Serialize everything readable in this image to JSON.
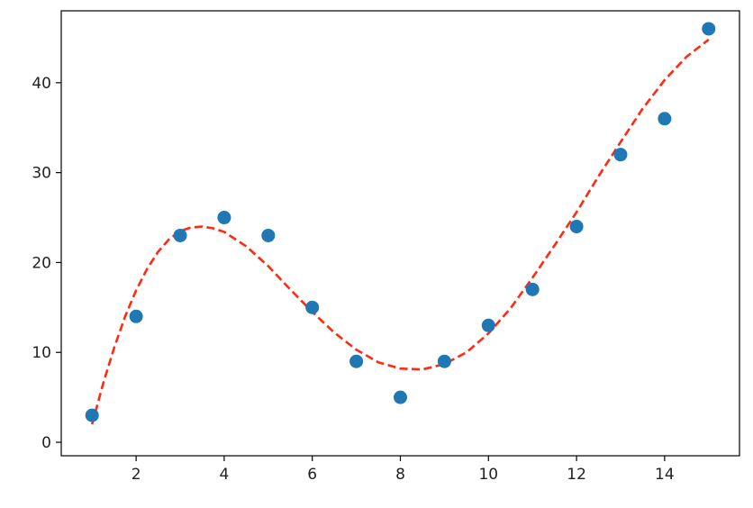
{
  "chart_data": {
    "type": "scatter",
    "title": "",
    "xlabel": "",
    "ylabel": "",
    "xlim": [
      0.3,
      15.7
    ],
    "ylim": [
      -1.5,
      48
    ],
    "x_ticks": [
      2,
      4,
      6,
      8,
      10,
      12,
      14
    ],
    "y_ticks": [
      0,
      10,
      20,
      30,
      40
    ],
    "grid": false,
    "series": [
      {
        "kind": "scatter",
        "color": "#1f77b4",
        "x": [
          1,
          2,
          3,
          4,
          5,
          6,
          7,
          8,
          9,
          10,
          11,
          12,
          13,
          14,
          15
        ],
        "y": [
          3,
          14,
          23,
          25,
          23,
          15,
          9,
          5,
          9,
          13,
          17,
          24,
          32,
          36,
          46
        ]
      },
      {
        "kind": "line",
        "style": "dashed",
        "color": "#ff2a12",
        "x": [
          1,
          1.25,
          1.5,
          1.75,
          2,
          2.25,
          2.5,
          2.75,
          3,
          3.25,
          3.5,
          3.75,
          4,
          4.5,
          5,
          5.5,
          6,
          6.5,
          7,
          7.5,
          8,
          8.5,
          9,
          9.5,
          10,
          10.5,
          11,
          11.5,
          12,
          12.5,
          13,
          13.5,
          14,
          14.5,
          15
        ],
        "y": [
          2,
          6.5,
          10.5,
          14,
          16.9,
          19.3,
          21.2,
          22.6,
          23.5,
          23.9,
          24,
          23.8,
          23.4,
          21.8,
          19.6,
          17,
          14.5,
          12.2,
          10.3,
          8.9,
          8.2,
          8.1,
          8.7,
          10,
          12.1,
          14.9,
          18.3,
          21.9,
          25.6,
          29.6,
          33.4,
          37.1,
          40.3,
          42.9,
          44.8
        ]
      }
    ]
  }
}
